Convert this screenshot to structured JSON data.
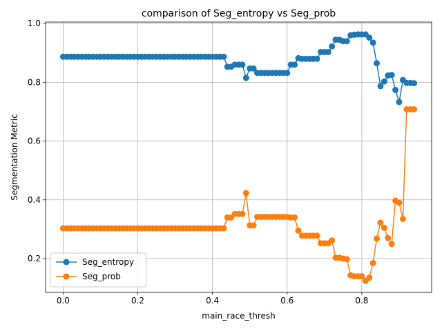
{
  "chart_data": {
    "type": "line",
    "title": "comparison of Seg_entropy vs Seg_prob",
    "xlabel": "main_race_thresh",
    "ylabel": "Segmentation Metric",
    "xlim": [
      -0.047,
      0.987
    ],
    "ylim": [
      0.085,
      1.005
    ],
    "xticks": [
      0.0,
      0.2,
      0.4,
      0.6,
      0.8
    ],
    "xtick_labels": [
      "0.0",
      "0.2",
      "0.4",
      "0.6",
      "0.8"
    ],
    "yticks": [
      0.2,
      0.4,
      0.6,
      0.8,
      1.0
    ],
    "ytick_labels": [
      "0.2",
      "0.4",
      "0.6",
      "0.8",
      "1.0"
    ],
    "grid": true,
    "legend_position": "lower-left",
    "x": [
      0.0,
      0.01,
      0.02,
      0.03,
      0.04,
      0.05,
      0.06,
      0.07,
      0.08,
      0.09,
      0.1,
      0.11,
      0.12,
      0.13,
      0.14,
      0.15,
      0.16,
      0.17,
      0.18,
      0.19,
      0.2,
      0.21,
      0.22,
      0.23,
      0.24,
      0.25,
      0.26,
      0.27,
      0.28,
      0.29,
      0.3,
      0.31,
      0.32,
      0.33,
      0.34,
      0.35,
      0.36,
      0.37,
      0.38,
      0.39,
      0.4,
      0.41,
      0.42,
      0.43,
      0.44,
      0.45,
      0.46,
      0.47,
      0.48,
      0.49,
      0.5,
      0.51,
      0.52,
      0.53,
      0.54,
      0.55,
      0.56,
      0.57,
      0.58,
      0.59,
      0.6,
      0.61,
      0.62,
      0.63,
      0.64,
      0.65,
      0.66,
      0.67,
      0.68,
      0.69,
      0.7,
      0.71,
      0.72,
      0.73,
      0.74,
      0.75,
      0.76,
      0.77,
      0.78,
      0.79,
      0.8,
      0.81,
      0.82,
      0.83,
      0.84,
      0.85,
      0.86,
      0.87,
      0.88,
      0.89,
      0.9,
      0.91,
      0.92,
      0.93,
      0.94
    ],
    "series": [
      {
        "name": "Seg_entropy",
        "color": "#1f77b4",
        "values": [
          0.887,
          0.887,
          0.887,
          0.887,
          0.887,
          0.887,
          0.887,
          0.887,
          0.887,
          0.887,
          0.887,
          0.887,
          0.887,
          0.887,
          0.887,
          0.887,
          0.887,
          0.887,
          0.887,
          0.887,
          0.887,
          0.887,
          0.887,
          0.887,
          0.887,
          0.887,
          0.887,
          0.887,
          0.887,
          0.887,
          0.887,
          0.887,
          0.887,
          0.887,
          0.887,
          0.887,
          0.887,
          0.887,
          0.887,
          0.887,
          0.887,
          0.887,
          0.887,
          0.887,
          0.853,
          0.853,
          0.86,
          0.86,
          0.86,
          0.815,
          0.847,
          0.847,
          0.832,
          0.832,
          0.832,
          0.832,
          0.832,
          0.832,
          0.832,
          0.832,
          0.832,
          0.86,
          0.86,
          0.882,
          0.88,
          0.88,
          0.88,
          0.88,
          0.88,
          0.903,
          0.903,
          0.903,
          0.922,
          0.945,
          0.945,
          0.94,
          0.94,
          0.96,
          0.962,
          0.963,
          0.963,
          0.963,
          0.952,
          0.935,
          0.865,
          0.787,
          0.803,
          0.823,
          0.825,
          0.774,
          0.733,
          0.808,
          0.798,
          0.798,
          0.797
        ]
      },
      {
        "name": "Seg_prob",
        "color": "#ff7f0e",
        "values": [
          0.303,
          0.303,
          0.303,
          0.303,
          0.303,
          0.303,
          0.303,
          0.303,
          0.303,
          0.303,
          0.303,
          0.303,
          0.303,
          0.303,
          0.303,
          0.303,
          0.303,
          0.303,
          0.303,
          0.303,
          0.303,
          0.303,
          0.303,
          0.303,
          0.303,
          0.303,
          0.303,
          0.303,
          0.303,
          0.303,
          0.303,
          0.303,
          0.303,
          0.303,
          0.303,
          0.303,
          0.303,
          0.303,
          0.303,
          0.303,
          0.303,
          0.303,
          0.303,
          0.303,
          0.34,
          0.34,
          0.352,
          0.352,
          0.352,
          0.423,
          0.313,
          0.313,
          0.342,
          0.342,
          0.342,
          0.342,
          0.342,
          0.342,
          0.342,
          0.342,
          0.342,
          0.34,
          0.34,
          0.295,
          0.278,
          0.278,
          0.278,
          0.278,
          0.278,
          0.252,
          0.252,
          0.252,
          0.262,
          0.203,
          0.203,
          0.2,
          0.198,
          0.143,
          0.14,
          0.14,
          0.14,
          0.124,
          0.135,
          0.185,
          0.268,
          0.322,
          0.305,
          0.27,
          0.25,
          0.397,
          0.39,
          0.335,
          0.708,
          0.708,
          0.708
        ]
      }
    ]
  }
}
